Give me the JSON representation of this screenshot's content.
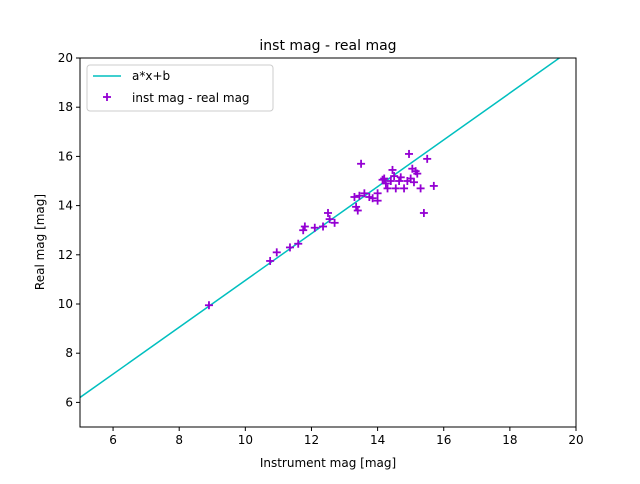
{
  "chart_data": {
    "type": "scatter",
    "title": "inst mag - real mag",
    "xlabel": "Instrument mag [mag]",
    "ylabel": "Real mag [mag]",
    "xlim": [
      5,
      20
    ],
    "ylim": [
      5,
      20
    ],
    "xticks": [
      6,
      8,
      10,
      12,
      14,
      16,
      18,
      20
    ],
    "yticks": [
      6,
      8,
      10,
      12,
      14,
      16,
      18,
      20
    ],
    "grid": false,
    "legend_placement": "upper-left",
    "fit_line": {
      "name": "a*x+b",
      "slope": 0.952,
      "intercept": 1.44,
      "color": "#00bfbf"
    },
    "series": [
      {
        "name": "inst mag - real mag",
        "marker": "plus",
        "color": "#9400d3",
        "points": [
          [
            8.9,
            9.95
          ],
          [
            10.75,
            11.75
          ],
          [
            10.95,
            12.1
          ],
          [
            11.35,
            12.3
          ],
          [
            11.6,
            12.45
          ],
          [
            11.75,
            13.0
          ],
          [
            11.8,
            13.15
          ],
          [
            12.1,
            13.1
          ],
          [
            12.35,
            13.15
          ],
          [
            12.5,
            13.7
          ],
          [
            12.55,
            13.45
          ],
          [
            12.7,
            13.3
          ],
          [
            13.3,
            14.35
          ],
          [
            13.35,
            13.95
          ],
          [
            13.4,
            13.8
          ],
          [
            13.45,
            14.4
          ],
          [
            13.5,
            15.7
          ],
          [
            13.6,
            14.5
          ],
          [
            13.75,
            14.35
          ],
          [
            13.85,
            14.3
          ],
          [
            14.0,
            14.2
          ],
          [
            14.0,
            14.5
          ],
          [
            14.15,
            15.05
          ],
          [
            14.2,
            15.1
          ],
          [
            14.25,
            14.9
          ],
          [
            14.3,
            14.7
          ],
          [
            14.4,
            15.0
          ],
          [
            14.45,
            15.45
          ],
          [
            14.5,
            15.2
          ],
          [
            14.55,
            14.7
          ],
          [
            14.65,
            15.0
          ],
          [
            14.7,
            15.15
          ],
          [
            14.8,
            14.7
          ],
          [
            14.9,
            15.0
          ],
          [
            14.95,
            16.1
          ],
          [
            15.0,
            15.1
          ],
          [
            15.05,
            15.5
          ],
          [
            15.1,
            14.95
          ],
          [
            15.15,
            15.4
          ],
          [
            15.2,
            15.3
          ],
          [
            15.3,
            14.7
          ],
          [
            15.4,
            13.7
          ],
          [
            15.5,
            15.9
          ],
          [
            15.7,
            14.8
          ]
        ]
      }
    ]
  }
}
